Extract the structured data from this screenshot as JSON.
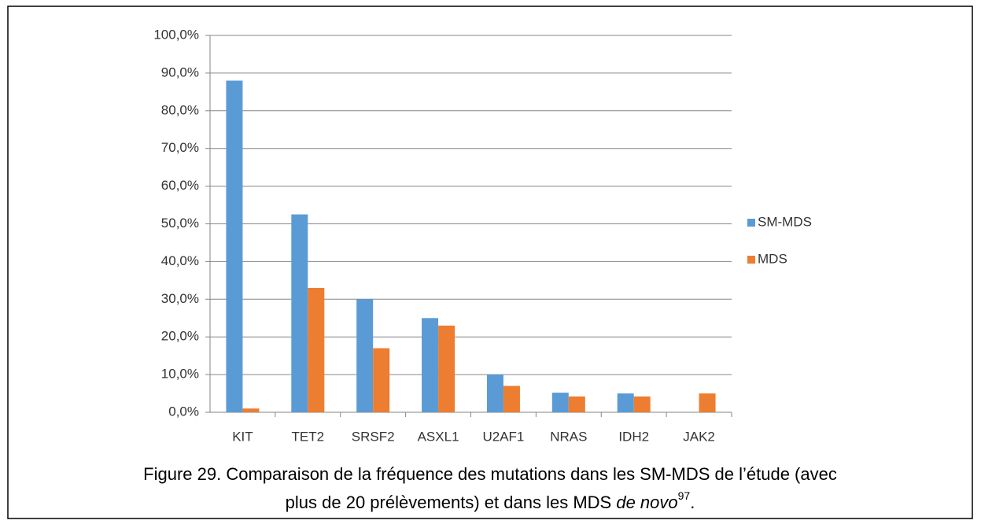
{
  "chart_data": {
    "type": "bar",
    "categories": [
      "KIT",
      "TET2",
      "SRSF2",
      "ASXL1",
      "U2AF1",
      "NRAS",
      "IDH2",
      "JAK2"
    ],
    "series": [
      {
        "name": "SM-MDS",
        "color": "#5b9bd5",
        "values": [
          88,
          52.5,
          30,
          25,
          10,
          5.2,
          5,
          0
        ]
      },
      {
        "name": "MDS",
        "color": "#ed7d31",
        "values": [
          1,
          33,
          17,
          23,
          7,
          4.2,
          4.2,
          5
        ]
      }
    ],
    "ylim": [
      0,
      100
    ],
    "yticks": [
      {
        "value": 0,
        "label": "0,0%"
      },
      {
        "value": 10,
        "label": "10,0%"
      },
      {
        "value": 20,
        "label": "20,0%"
      },
      {
        "value": 30,
        "label": "30,0%"
      },
      {
        "value": 40,
        "label": "40,0%"
      },
      {
        "value": 50,
        "label": "50,0%"
      },
      {
        "value": 60,
        "label": "60,0%"
      },
      {
        "value": 70,
        "label": "70,0%"
      },
      {
        "value": 80,
        "label": "80,0%"
      },
      {
        "value": 90,
        "label": "90,0%"
      },
      {
        "value": 100,
        "label": "100,0%"
      }
    ],
    "grid": true,
    "legend": "right",
    "caption": {
      "line1": "Figure 29. Comparaison de la fréquence des mutations dans les SM-MDS de l’étude (avec",
      "line2": "plus de 20 prélèvements) et dans les MDS ",
      "italic": "de novo",
      "superscript": "97",
      "end": "."
    }
  }
}
